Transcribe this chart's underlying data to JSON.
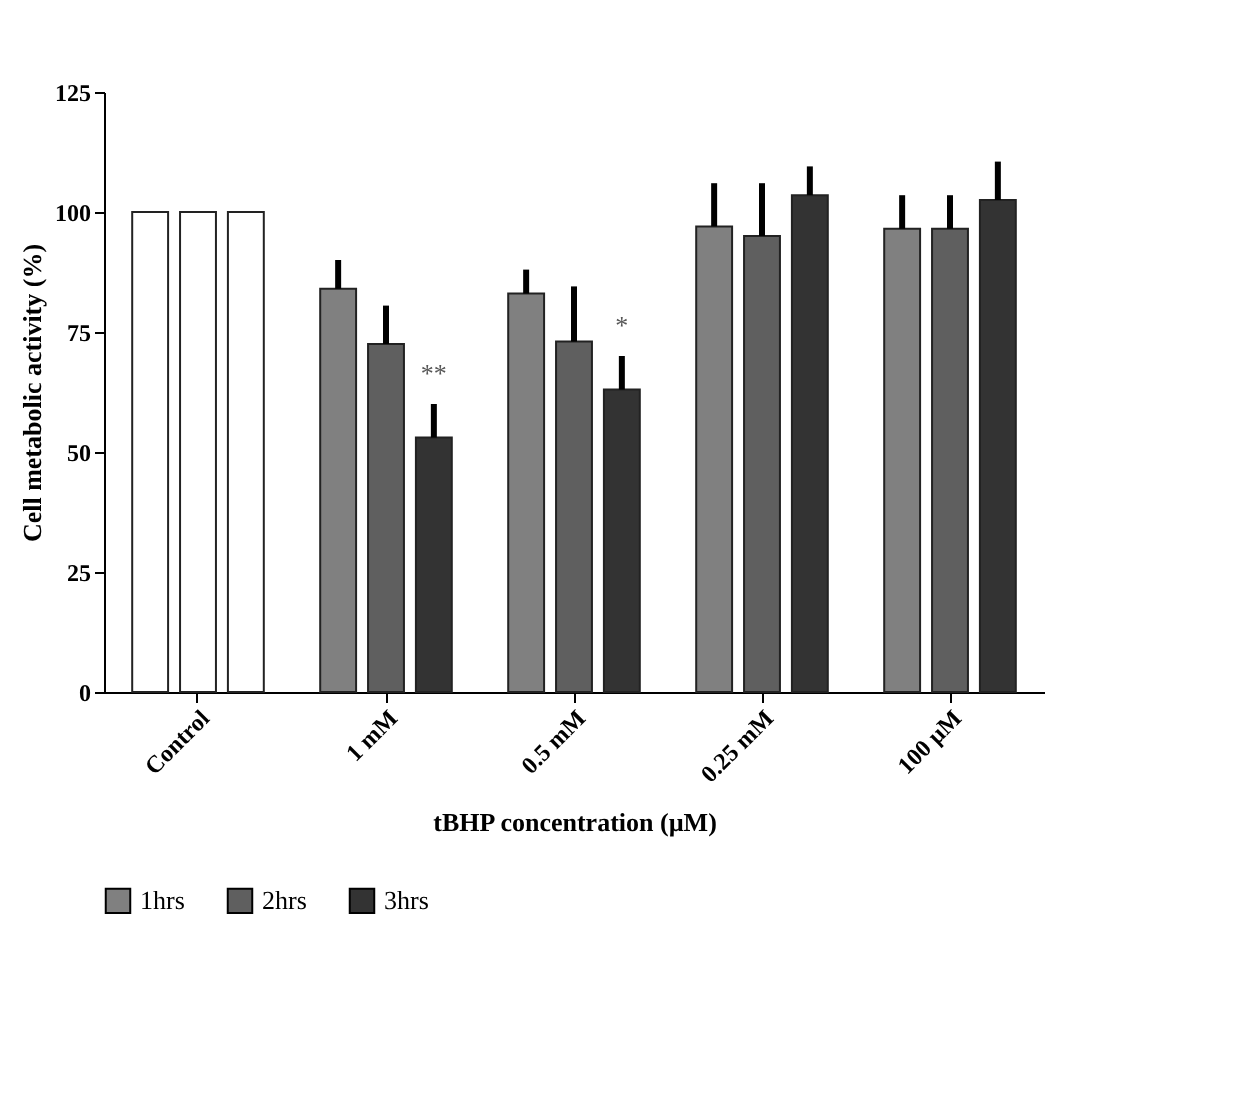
{
  "chart_data": {
    "type": "bar",
    "xlabel": "tBHP concentration (µM)",
    "ylabel": "Cell metabolic activity (%)",
    "categories": [
      "Control",
      "1 mM",
      "0.5 mM",
      "0.25 mM",
      "100 µM"
    ],
    "series": [
      {
        "name": "1hrs",
        "color": "#808080",
        "colors": [
          "#ffffff",
          "#808080",
          "#808080",
          "#808080",
          "#808080"
        ],
        "values": [
          100,
          84,
          83,
          97,
          96.5
        ],
        "errors": [
          null,
          6,
          5,
          9,
          7
        ]
      },
      {
        "name": "2hrs",
        "color": "#5f5f5f",
        "colors": [
          "#ffffff",
          "#5f5f5f",
          "#5f5f5f",
          "#5f5f5f",
          "#5f5f5f"
        ],
        "values": [
          100,
          72.5,
          73,
          95,
          96.5
        ],
        "errors": [
          null,
          8,
          11.5,
          11,
          7
        ]
      },
      {
        "name": "3hrs",
        "color": "#333333",
        "colors": [
          "#ffffff",
          "#333333",
          "#333333",
          "#333333",
          "#333333"
        ],
        "values": [
          100,
          53,
          63,
          103.5,
          102.5
        ],
        "errors": [
          null,
          7,
          7,
          6,
          8
        ]
      }
    ],
    "ylim": [
      0,
      125
    ],
    "yticks": [
      0,
      25,
      50,
      75,
      100,
      125
    ],
    "grid": false,
    "legend": "bottom",
    "annotations": [
      "**",
      "*"
    ]
  }
}
